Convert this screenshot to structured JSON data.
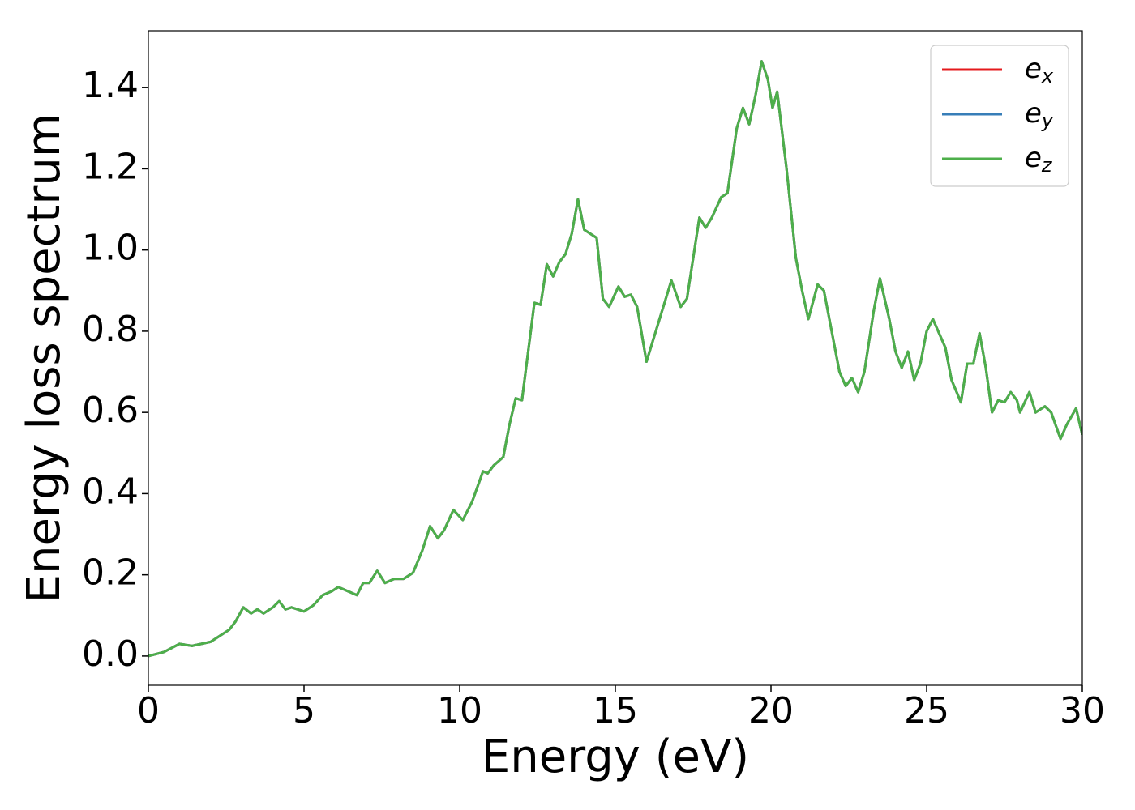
{
  "chart_data": {
    "type": "line",
    "xlabel": "Energy (eV)",
    "ylabel": "Energy loss spectrum",
    "x": [
      0,
      0.5,
      1.0,
      1.4,
      2.0,
      2.3,
      2.6,
      2.8,
      3.05,
      3.3,
      3.5,
      3.7,
      4.0,
      4.2,
      4.4,
      4.6,
      5.0,
      5.3,
      5.6,
      5.9,
      6.1,
      6.4,
      6.7,
      6.9,
      7.1,
      7.35,
      7.6,
      7.9,
      8.2,
      8.5,
      8.8,
      9.05,
      9.3,
      9.5,
      9.8,
      10.1,
      10.4,
      10.75,
      10.9,
      11.1,
      11.4,
      11.6,
      11.8,
      12.0,
      12.2,
      12.4,
      12.6,
      12.8,
      13.0,
      13.2,
      13.4,
      13.6,
      13.8,
      14.0,
      14.2,
      14.4,
      14.6,
      14.8,
      15.1,
      15.3,
      15.5,
      15.7,
      16.0,
      16.3,
      16.5,
      16.8,
      17.1,
      17.3,
      17.7,
      17.9,
      18.1,
      18.4,
      18.6,
      18.9,
      19.1,
      19.3,
      19.5,
      19.7,
      19.9,
      20.05,
      20.2,
      20.5,
      20.8,
      21.0,
      21.2,
      21.5,
      21.7,
      22.0,
      22.2,
      22.4,
      22.6,
      22.8,
      23.0,
      23.3,
      23.5,
      23.8,
      24.0,
      24.2,
      24.4,
      24.6,
      24.8,
      25.0,
      25.2,
      25.4,
      25.6,
      25.8,
      26.1,
      26.3,
      26.5,
      26.7,
      26.9,
      27.1,
      27.3,
      27.5,
      27.7,
      27.9,
      28.0,
      28.3,
      28.5,
      28.8,
      29.0,
      29.3,
      29.5,
      29.8,
      30.0
    ],
    "series": [
      {
        "name": "ex",
        "color": "#e41a1c",
        "values": [
          0,
          0.01,
          0.03,
          0.025,
          0.035,
          0.05,
          0.065,
          0.085,
          0.12,
          0.105,
          0.115,
          0.105,
          0.12,
          0.135,
          0.115,
          0.12,
          0.11,
          0.125,
          0.15,
          0.16,
          0.17,
          0.16,
          0.15,
          0.18,
          0.18,
          0.21,
          0.18,
          0.19,
          0.19,
          0.205,
          0.26,
          0.32,
          0.29,
          0.31,
          0.36,
          0.335,
          0.38,
          0.455,
          0.45,
          0.47,
          0.49,
          0.57,
          0.635,
          0.63,
          0.75,
          0.87,
          0.865,
          0.965,
          0.935,
          0.97,
          0.99,
          1.04,
          1.125,
          1.05,
          1.04,
          1.03,
          0.88,
          0.86,
          0.91,
          0.885,
          0.89,
          0.86,
          0.725,
          0.8,
          0.85,
          0.925,
          0.86,
          0.88,
          1.08,
          1.055,
          1.08,
          1.13,
          1.14,
          1.3,
          1.35,
          1.31,
          1.38,
          1.465,
          1.42,
          1.35,
          1.39,
          1.2,
          0.98,
          0.9,
          0.83,
          0.915,
          0.9,
          0.78,
          0.7,
          0.665,
          0.685,
          0.65,
          0.7,
          0.85,
          0.93,
          0.83,
          0.75,
          0.71,
          0.75,
          0.68,
          0.72,
          0.8,
          0.83,
          0.795,
          0.76,
          0.68,
          0.625,
          0.72,
          0.72,
          0.795,
          0.71,
          0.6,
          0.63,
          0.625,
          0.65,
          0.63,
          0.6,
          0.65,
          0.6,
          0.615,
          0.6,
          0.535,
          0.57,
          0.61,
          0.545
        ]
      },
      {
        "name": "ey",
        "color": "#377eb8",
        "values": [
          0,
          0.01,
          0.03,
          0.025,
          0.035,
          0.05,
          0.065,
          0.085,
          0.12,
          0.105,
          0.115,
          0.105,
          0.12,
          0.135,
          0.115,
          0.12,
          0.11,
          0.125,
          0.15,
          0.16,
          0.17,
          0.16,
          0.15,
          0.18,
          0.18,
          0.21,
          0.18,
          0.19,
          0.19,
          0.205,
          0.26,
          0.32,
          0.29,
          0.31,
          0.36,
          0.335,
          0.38,
          0.455,
          0.45,
          0.47,
          0.49,
          0.57,
          0.635,
          0.63,
          0.75,
          0.87,
          0.865,
          0.965,
          0.935,
          0.97,
          0.99,
          1.04,
          1.125,
          1.05,
          1.04,
          1.03,
          0.88,
          0.86,
          0.91,
          0.885,
          0.89,
          0.86,
          0.725,
          0.8,
          0.85,
          0.925,
          0.86,
          0.88,
          1.08,
          1.055,
          1.08,
          1.13,
          1.14,
          1.3,
          1.35,
          1.31,
          1.38,
          1.465,
          1.42,
          1.35,
          1.39,
          1.2,
          0.98,
          0.9,
          0.83,
          0.915,
          0.9,
          0.78,
          0.7,
          0.665,
          0.685,
          0.65,
          0.7,
          0.85,
          0.93,
          0.83,
          0.75,
          0.71,
          0.75,
          0.68,
          0.72,
          0.8,
          0.83,
          0.795,
          0.76,
          0.68,
          0.625,
          0.72,
          0.72,
          0.795,
          0.71,
          0.6,
          0.63,
          0.625,
          0.65,
          0.63,
          0.6,
          0.65,
          0.6,
          0.615,
          0.6,
          0.535,
          0.57,
          0.61,
          0.545
        ]
      },
      {
        "name": "ez",
        "color": "#4daf4a",
        "values": [
          0,
          0.01,
          0.03,
          0.025,
          0.035,
          0.05,
          0.065,
          0.085,
          0.12,
          0.105,
          0.115,
          0.105,
          0.12,
          0.135,
          0.115,
          0.12,
          0.11,
          0.125,
          0.15,
          0.16,
          0.17,
          0.16,
          0.15,
          0.18,
          0.18,
          0.21,
          0.18,
          0.19,
          0.19,
          0.205,
          0.26,
          0.32,
          0.29,
          0.31,
          0.36,
          0.335,
          0.38,
          0.455,
          0.45,
          0.47,
          0.49,
          0.57,
          0.635,
          0.63,
          0.75,
          0.87,
          0.865,
          0.965,
          0.935,
          0.97,
          0.99,
          1.04,
          1.125,
          1.05,
          1.04,
          1.03,
          0.88,
          0.86,
          0.91,
          0.885,
          0.89,
          0.86,
          0.725,
          0.8,
          0.85,
          0.925,
          0.86,
          0.88,
          1.08,
          1.055,
          1.08,
          1.13,
          1.14,
          1.3,
          1.35,
          1.31,
          1.38,
          1.465,
          1.42,
          1.35,
          1.39,
          1.2,
          0.98,
          0.9,
          0.83,
          0.915,
          0.9,
          0.78,
          0.7,
          0.665,
          0.685,
          0.65,
          0.7,
          0.85,
          0.93,
          0.83,
          0.75,
          0.71,
          0.75,
          0.68,
          0.72,
          0.8,
          0.83,
          0.795,
          0.76,
          0.68,
          0.625,
          0.72,
          0.72,
          0.795,
          0.71,
          0.6,
          0.63,
          0.625,
          0.65,
          0.63,
          0.6,
          0.65,
          0.6,
          0.615,
          0.6,
          0.535,
          0.57,
          0.61,
          0.545
        ]
      }
    ],
    "xlim": [
      0,
      30
    ],
    "xticks": [
      0,
      5,
      10,
      15,
      20,
      25,
      30
    ],
    "ylim": [
      -0.072,
      1.54
    ],
    "yticks": [
      {
        "value": 0,
        "label": "0.0"
      },
      0.2,
      0.4,
      0.6,
      0.8,
      {
        "value": 1,
        "label": "1.0"
      },
      1.2,
      1.4
    ],
    "legend": "upper right",
    "grid": false
  }
}
